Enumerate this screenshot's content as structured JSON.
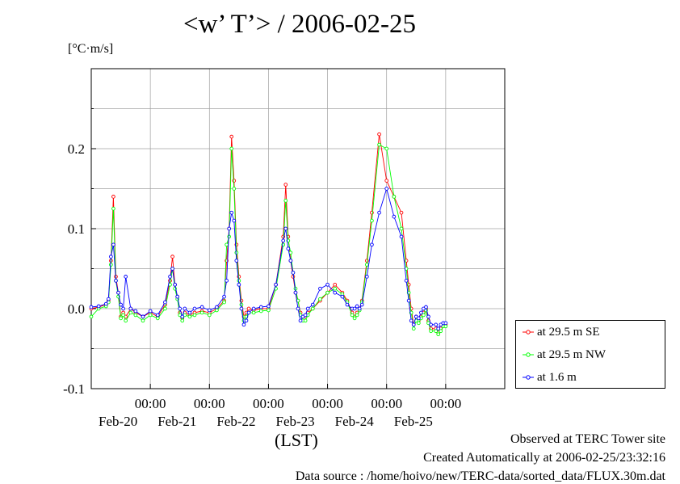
{
  "chart_data": {
    "type": "line",
    "title": "<w’ T’> / 2006-02-25",
    "unit_label": "[°C·m/s]",
    "xlabel": "(LST)",
    "ylim": [
      -0.1,
      0.3
    ],
    "xlim": [
      "2006-02-19T00:00",
      "2006-02-26T00:00"
    ],
    "y_ticks": [
      -0.1,
      0.0,
      0.1,
      0.2
    ],
    "y_tick_labels": [
      "-0.1",
      "0.0",
      "0.1",
      "0.2"
    ],
    "x_ticks": [
      "2006-02-20T00:00",
      "2006-02-21T00:00",
      "2006-02-22T00:00",
      "2006-02-23T00:00",
      "2006-02-24T00:00",
      "2006-02-25T00:00"
    ],
    "x_time_labels": [
      "00:00",
      "00:00",
      "00:00",
      "00:00",
      "00:00",
      "00:00"
    ],
    "x_date_labels": [
      "Feb-20",
      "Feb-21",
      "Feb-22",
      "Feb-23",
      "Feb-24",
      "Feb-25"
    ],
    "grid": true,
    "legend_position": "bottom-right, outside plot",
    "series": [
      {
        "name": "at 29.5 m SE",
        "color": "#ff0000",
        "marker": "open-circle",
        "x": [
          "2006-02-19T00:00",
          "2006-02-19T03:00",
          "2006-02-19T06:00",
          "2006-02-19T07:00",
          "2006-02-19T08:00",
          "2006-02-19T09:00",
          "2006-02-19T10:00",
          "2006-02-19T11:00",
          "2006-02-19T12:00",
          "2006-02-19T13:00",
          "2006-02-19T14:00",
          "2006-02-19T16:00",
          "2006-02-19T18:00",
          "2006-02-19T21:00",
          "2006-02-20T00:00",
          "2006-02-20T03:00",
          "2006-02-20T06:00",
          "2006-02-20T08:00",
          "2006-02-20T09:00",
          "2006-02-20T10:00",
          "2006-02-20T11:00",
          "2006-02-20T12:00",
          "2006-02-20T13:00",
          "2006-02-20T14:00",
          "2006-02-20T16:00",
          "2006-02-20T18:00",
          "2006-02-20T21:00",
          "2006-02-21T00:00",
          "2006-02-21T03:00",
          "2006-02-21T06:00",
          "2006-02-21T07:00",
          "2006-02-21T08:00",
          "2006-02-21T09:00",
          "2006-02-21T10:00",
          "2006-02-21T11:00",
          "2006-02-21T12:00",
          "2006-02-21T13:00",
          "2006-02-21T14:00",
          "2006-02-21T15:00",
          "2006-02-21T16:00",
          "2006-02-21T18:00",
          "2006-02-21T21:00",
          "2006-02-22T00:00",
          "2006-02-22T03:00",
          "2006-02-22T06:00",
          "2006-02-22T07:00",
          "2006-02-22T08:00",
          "2006-02-22T09:00",
          "2006-02-22T10:00",
          "2006-02-22T11:00",
          "2006-02-22T12:00",
          "2006-02-22T13:00",
          "2006-02-22T14:00",
          "2006-02-22T15:00",
          "2006-02-22T16:00",
          "2006-02-22T18:00",
          "2006-02-22T21:00",
          "2006-02-23T00:00",
          "2006-02-23T03:00",
          "2006-02-23T06:00",
          "2006-02-23T08:00",
          "2006-02-23T10:00",
          "2006-02-23T11:00",
          "2006-02-23T12:00",
          "2006-02-23T13:00",
          "2006-02-23T14:00",
          "2006-02-23T16:00",
          "2006-02-23T18:00",
          "2006-02-23T21:00",
          "2006-02-24T00:00",
          "2006-02-24T03:00",
          "2006-02-24T06:00",
          "2006-02-24T08:00",
          "2006-02-24T09:00",
          "2006-02-24T10:00",
          "2006-02-24T11:00",
          "2006-02-24T12:00",
          "2006-02-24T13:00",
          "2006-02-24T14:00",
          "2006-02-24T15:00",
          "2006-02-24T16:00",
          "2006-02-24T17:00",
          "2006-02-24T18:00",
          "2006-02-24T20:00",
          "2006-02-24T21:00",
          "2006-02-24T22:00",
          "2006-02-24T23:00",
          "2006-02-25T00:00"
        ],
        "y": [
          0.0,
          0.002,
          0.005,
          0.01,
          0.06,
          0.14,
          0.04,
          0.02,
          -0.01,
          -0.005,
          -0.01,
          0.0,
          -0.005,
          -0.01,
          -0.005,
          -0.01,
          0.005,
          0.035,
          0.065,
          0.03,
          0.015,
          -0.005,
          -0.012,
          -0.005,
          -0.008,
          -0.005,
          -0.003,
          -0.005,
          0.0,
          0.01,
          0.06,
          0.1,
          0.215,
          0.16,
          0.08,
          0.04,
          0.01,
          -0.01,
          -0.005,
          0.0,
          -0.002,
          0.0,
          0.0,
          0.03,
          0.09,
          0.155,
          0.09,
          0.06,
          0.04,
          0.02,
          0.01,
          -0.005,
          -0.01,
          -0.01,
          -0.005,
          0.0,
          0.01,
          0.02,
          0.03,
          0.02,
          0.01,
          -0.005,
          -0.01,
          -0.005,
          0.0,
          0.01,
          0.06,
          0.12,
          0.218,
          0.16,
          0.14,
          0.12,
          0.06,
          0.03,
          0.0,
          -0.02,
          -0.01,
          -0.015,
          -0.01,
          -0.005,
          0.0,
          -0.015,
          -0.025,
          -0.025,
          -0.03,
          -0.025,
          -0.02,
          -0.02
        ]
      },
      {
        "name": "at 29.5 m NW",
        "color": "#00ff00",
        "marker": "open-circle",
        "x": [
          "2006-02-19T00:00",
          "2006-02-19T03:00",
          "2006-02-19T06:00",
          "2006-02-19T07:00",
          "2006-02-19T08:00",
          "2006-02-19T09:00",
          "2006-02-19T10:00",
          "2006-02-19T11:00",
          "2006-02-19T12:00",
          "2006-02-19T13:00",
          "2006-02-19T14:00",
          "2006-02-19T16:00",
          "2006-02-19T18:00",
          "2006-02-19T21:00",
          "2006-02-20T00:00",
          "2006-02-20T03:00",
          "2006-02-20T06:00",
          "2006-02-20T08:00",
          "2006-02-20T09:00",
          "2006-02-20T10:00",
          "2006-02-20T11:00",
          "2006-02-20T12:00",
          "2006-02-20T13:00",
          "2006-02-20T14:00",
          "2006-02-20T16:00",
          "2006-02-20T18:00",
          "2006-02-20T21:00",
          "2006-02-21T00:00",
          "2006-02-21T03:00",
          "2006-02-21T06:00",
          "2006-02-21T07:00",
          "2006-02-21T08:00",
          "2006-02-21T09:00",
          "2006-02-21T10:00",
          "2006-02-21T11:00",
          "2006-02-21T12:00",
          "2006-02-21T13:00",
          "2006-02-21T14:00",
          "2006-02-21T15:00",
          "2006-02-21T16:00",
          "2006-02-21T18:00",
          "2006-02-21T21:00",
          "2006-02-22T00:00",
          "2006-02-22T03:00",
          "2006-02-22T06:00",
          "2006-02-22T07:00",
          "2006-02-22T08:00",
          "2006-02-22T09:00",
          "2006-02-22T10:00",
          "2006-02-22T11:00",
          "2006-02-22T12:00",
          "2006-02-22T13:00",
          "2006-02-22T14:00",
          "2006-02-22T15:00",
          "2006-02-22T16:00",
          "2006-02-22T18:00",
          "2006-02-22T21:00",
          "2006-02-23T00:00",
          "2006-02-23T03:00",
          "2006-02-23T06:00",
          "2006-02-23T08:00",
          "2006-02-23T10:00",
          "2006-02-23T11:00",
          "2006-02-23T12:00",
          "2006-02-23T13:00",
          "2006-02-23T14:00",
          "2006-02-23T16:00",
          "2006-02-23T18:00",
          "2006-02-23T21:00",
          "2006-02-24T00:00",
          "2006-02-24T03:00",
          "2006-02-24T06:00",
          "2006-02-24T08:00",
          "2006-02-24T09:00",
          "2006-02-24T10:00",
          "2006-02-24T11:00",
          "2006-02-24T12:00",
          "2006-02-24T13:00",
          "2006-02-24T14:00",
          "2006-02-24T15:00",
          "2006-02-24T16:00",
          "2006-02-24T17:00",
          "2006-02-24T18:00",
          "2006-02-24T20:00",
          "2006-02-24T21:00",
          "2006-02-24T22:00",
          "2006-02-24T23:00",
          "2006-02-25T00:00"
        ],
        "y": [
          -0.01,
          0.0,
          0.003,
          0.008,
          0.055,
          0.125,
          0.035,
          0.015,
          -0.012,
          -0.008,
          -0.015,
          -0.005,
          -0.008,
          -0.015,
          -0.008,
          -0.012,
          0.0,
          0.03,
          0.05,
          0.025,
          0.012,
          -0.008,
          -0.015,
          -0.008,
          -0.01,
          -0.008,
          -0.005,
          -0.008,
          -0.002,
          0.008,
          0.08,
          0.09,
          0.2,
          0.15,
          0.07,
          0.035,
          0.005,
          -0.015,
          -0.01,
          -0.005,
          -0.005,
          -0.003,
          -0.002,
          0.025,
          0.08,
          0.135,
          0.085,
          0.07,
          0.045,
          0.025,
          0.01,
          -0.008,
          -0.015,
          -0.015,
          -0.008,
          0.0,
          0.012,
          0.02,
          0.025,
          0.018,
          0.008,
          -0.008,
          -0.012,
          -0.008,
          -0.002,
          0.008,
          0.055,
          0.11,
          0.205,
          0.2,
          0.14,
          0.1,
          0.05,
          0.02,
          -0.005,
          -0.025,
          -0.015,
          -0.018,
          -0.012,
          -0.008,
          -0.002,
          -0.018,
          -0.028,
          -0.028,
          -0.032,
          -0.028,
          -0.022,
          -0.022
        ]
      },
      {
        "name": "at 1.6 m",
        "color": "#0000ff",
        "marker": "open-circle",
        "x": [
          "2006-02-19T00:00",
          "2006-02-19T03:00",
          "2006-02-19T06:00",
          "2006-02-19T07:00",
          "2006-02-19T08:00",
          "2006-02-19T09:00",
          "2006-02-19T10:00",
          "2006-02-19T11:00",
          "2006-02-19T12:00",
          "2006-02-19T13:00",
          "2006-02-19T14:00",
          "2006-02-19T16:00",
          "2006-02-19T18:00",
          "2006-02-19T21:00",
          "2006-02-20T00:00",
          "2006-02-20T03:00",
          "2006-02-20T06:00",
          "2006-02-20T08:00",
          "2006-02-20T09:00",
          "2006-02-20T10:00",
          "2006-02-20T11:00",
          "2006-02-20T12:00",
          "2006-02-20T13:00",
          "2006-02-20T14:00",
          "2006-02-20T16:00",
          "2006-02-20T18:00",
          "2006-02-20T21:00",
          "2006-02-21T00:00",
          "2006-02-21T03:00",
          "2006-02-21T06:00",
          "2006-02-21T07:00",
          "2006-02-21T08:00",
          "2006-02-21T09:00",
          "2006-02-21T10:00",
          "2006-02-21T11:00",
          "2006-02-21T12:00",
          "2006-02-21T13:00",
          "2006-02-21T14:00",
          "2006-02-21T15:00",
          "2006-02-21T16:00",
          "2006-02-21T18:00",
          "2006-02-21T21:00",
          "2006-02-22T00:00",
          "2006-02-22T03:00",
          "2006-02-22T06:00",
          "2006-02-22T07:00",
          "2006-02-22T08:00",
          "2006-02-22T09:00",
          "2006-02-22T10:00",
          "2006-02-22T11:00",
          "2006-02-22T12:00",
          "2006-02-22T13:00",
          "2006-02-22T14:00",
          "2006-02-22T15:00",
          "2006-02-22T16:00",
          "2006-02-22T18:00",
          "2006-02-22T21:00",
          "2006-02-23T00:00",
          "2006-02-23T03:00",
          "2006-02-23T06:00",
          "2006-02-23T08:00",
          "2006-02-23T10:00",
          "2006-02-23T11:00",
          "2006-02-23T12:00",
          "2006-02-23T13:00",
          "2006-02-23T14:00",
          "2006-02-23T16:00",
          "2006-02-23T18:00",
          "2006-02-23T21:00",
          "2006-02-24T00:00",
          "2006-02-24T03:00",
          "2006-02-24T06:00",
          "2006-02-24T08:00",
          "2006-02-24T09:00",
          "2006-02-24T10:00",
          "2006-02-24T11:00",
          "2006-02-24T12:00",
          "2006-02-24T13:00",
          "2006-02-24T14:00",
          "2006-02-24T15:00",
          "2006-02-24T16:00",
          "2006-02-24T17:00",
          "2006-02-24T18:00",
          "2006-02-24T20:00",
          "2006-02-24T21:00",
          "2006-02-24T22:00",
          "2006-02-24T23:00",
          "2006-02-25T00:00"
        ],
        "y": [
          0.002,
          0.003,
          0.006,
          0.012,
          0.065,
          0.08,
          0.035,
          0.02,
          0.005,
          0.0,
          0.04,
          0.0,
          -0.003,
          -0.01,
          -0.003,
          -0.008,
          0.008,
          0.04,
          0.05,
          0.03,
          0.015,
          0.0,
          -0.01,
          0.0,
          -0.005,
          0.0,
          0.002,
          -0.002,
          0.002,
          0.015,
          0.035,
          0.1,
          0.12,
          0.11,
          0.06,
          0.03,
          0.0,
          -0.02,
          -0.015,
          -0.005,
          0.0,
          0.002,
          0.003,
          0.03,
          0.085,
          0.1,
          0.075,
          0.06,
          0.045,
          0.02,
          0.0,
          -0.015,
          -0.01,
          -0.008,
          0.0,
          0.005,
          0.025,
          0.03,
          0.02,
          0.015,
          0.005,
          0.0,
          0.0,
          0.003,
          0.0,
          0.005,
          0.04,
          0.08,
          0.12,
          0.15,
          0.115,
          0.09,
          0.035,
          0.01,
          -0.015,
          -0.02,
          -0.01,
          -0.012,
          -0.005,
          0.0,
          0.002,
          -0.01,
          -0.02,
          -0.02,
          -0.025,
          -0.02,
          -0.018,
          -0.018
        ]
      }
    ]
  },
  "credits": {
    "line1": "Observed at TERC Tower site",
    "line2": "Created Automatically at 2006-02-25/23:32:16",
    "line3": "Data source : /home/hoivo/new/TERC-data/sorted_data/FLUX.30m.dat"
  }
}
